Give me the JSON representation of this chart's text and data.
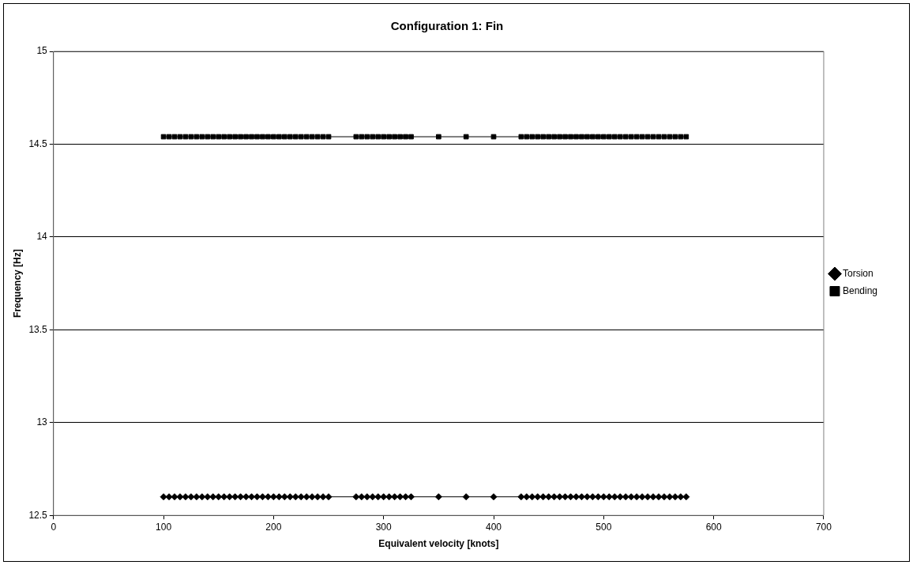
{
  "chart_data": {
    "type": "line",
    "title": "Configuration 1: Fin",
    "xlabel": "Equivalent velocity [knots]",
    "ylabel": "Frequency [Hz]",
    "x": [
      100,
      105,
      110,
      115,
      120,
      125,
      130,
      135,
      140,
      145,
      150,
      155,
      160,
      165,
      170,
      175,
      180,
      185,
      190,
      195,
      200,
      205,
      210,
      215,
      220,
      225,
      230,
      235,
      240,
      245,
      250,
      275,
      280,
      285,
      290,
      295,
      300,
      305,
      310,
      315,
      320,
      325,
      350,
      375,
      400,
      425,
      430,
      435,
      440,
      445,
      450,
      455,
      460,
      465,
      470,
      475,
      480,
      485,
      490,
      495,
      500,
      505,
      510,
      515,
      520,
      525,
      530,
      535,
      540,
      545,
      550,
      555,
      560,
      565,
      570,
      575
    ],
    "series": [
      {
        "name": "Torsion",
        "color": "#000000",
        "marker": "diamond",
        "values": [
          12.6,
          12.6,
          12.6,
          12.6,
          12.6,
          12.6,
          12.6,
          12.6,
          12.6,
          12.6,
          12.6,
          12.6,
          12.6,
          12.6,
          12.6,
          12.6,
          12.6,
          12.6,
          12.6,
          12.6,
          12.6,
          12.6,
          12.6,
          12.6,
          12.6,
          12.6,
          12.6,
          12.6,
          12.6,
          12.6,
          12.6,
          12.6,
          12.6,
          12.6,
          12.6,
          12.6,
          12.6,
          12.6,
          12.6,
          12.6,
          12.6,
          12.6,
          12.6,
          12.6,
          12.6,
          12.6,
          12.6,
          12.6,
          12.6,
          12.6,
          12.6,
          12.6,
          12.6,
          12.6,
          12.6,
          12.6,
          12.6,
          12.6,
          12.6,
          12.6,
          12.6,
          12.6,
          12.6,
          12.6,
          12.6,
          12.6,
          12.6,
          12.6,
          12.6,
          12.6,
          12.6,
          12.6,
          12.6,
          12.6,
          12.6,
          12.6
        ]
      },
      {
        "name": "Bending",
        "color": "#000000",
        "marker": "square",
        "values": [
          14.54,
          14.54,
          14.54,
          14.54,
          14.54,
          14.54,
          14.54,
          14.54,
          14.54,
          14.54,
          14.54,
          14.54,
          14.54,
          14.54,
          14.54,
          14.54,
          14.54,
          14.54,
          14.54,
          14.54,
          14.54,
          14.54,
          14.54,
          14.54,
          14.54,
          14.54,
          14.54,
          14.54,
          14.54,
          14.54,
          14.54,
          14.54,
          14.54,
          14.54,
          14.54,
          14.54,
          14.54,
          14.54,
          14.54,
          14.54,
          14.54,
          14.54,
          14.54,
          14.54,
          14.54,
          14.54,
          14.54,
          14.54,
          14.54,
          14.54,
          14.54,
          14.54,
          14.54,
          14.54,
          14.54,
          14.54,
          14.54,
          14.54,
          14.54,
          14.54,
          14.54,
          14.54,
          14.54,
          14.54,
          14.54,
          14.54,
          14.54,
          14.54,
          14.54,
          14.54,
          14.54,
          14.54,
          14.54,
          14.54,
          14.54,
          14.54
        ]
      }
    ],
    "xlim": [
      0,
      700
    ],
    "xticks": [
      0,
      100,
      200,
      300,
      400,
      500,
      600,
      700
    ],
    "ylim": [
      12.5,
      15
    ],
    "yticks": [
      12.5,
      13,
      13.5,
      14,
      14.5,
      15
    ],
    "grid": "y",
    "legend": "right",
    "line_style": "solid"
  }
}
